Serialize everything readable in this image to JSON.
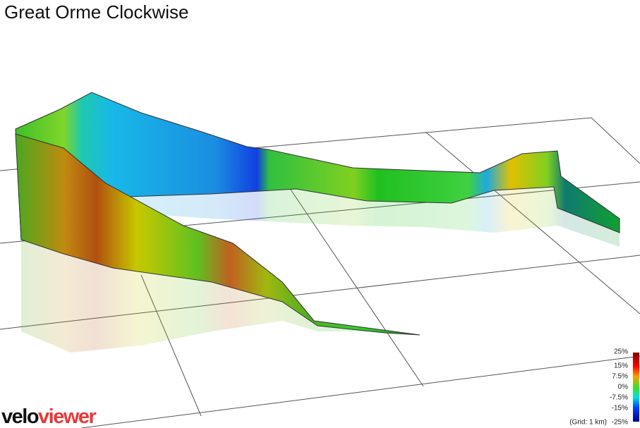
{
  "header": {
    "title": "Great Orme Clockwise"
  },
  "legend": {
    "labels": [
      "25%",
      "15%",
      "7.5%",
      "0%",
      "-7.5%",
      "-15%",
      "-25%"
    ]
  },
  "grid_note": "(Grid: 1 km)",
  "logo": {
    "part1": "velo",
    "part2": "viewer"
  }
}
